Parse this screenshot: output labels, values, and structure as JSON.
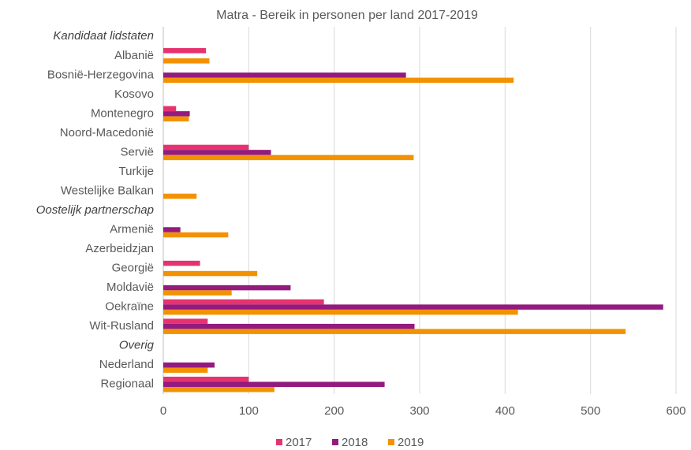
{
  "chart_data": {
    "type": "hbar",
    "title": "Matra - Bereik in personen per land 2017-2019",
    "categories": [
      {
        "label": "Kandidaat lidstaten",
        "group": true
      },
      {
        "label": "Albanië"
      },
      {
        "label": "Bosnië-Herzegovina"
      },
      {
        "label": "Kosovo"
      },
      {
        "label": "Montenegro"
      },
      {
        "label": "Noord-Macedonië"
      },
      {
        "label": "Servië"
      },
      {
        "label": "Turkije"
      },
      {
        "label": "Westelijke Balkan"
      },
      {
        "label": "Oostelijk partnerschap",
        "group": true
      },
      {
        "label": "Armenië"
      },
      {
        "label": "Azerbeidzjan"
      },
      {
        "label": "Georgië"
      },
      {
        "label": "Moldavië"
      },
      {
        "label": "Oekraïne"
      },
      {
        "label": "Wit-Rusland"
      },
      {
        "label": "Overig",
        "group": true
      },
      {
        "label": "Nederland"
      },
      {
        "label": "Regionaal"
      }
    ],
    "series": [
      {
        "name": "2017",
        "color": "#e6336f",
        "values": [
          null,
          50,
          null,
          null,
          15,
          null,
          100,
          null,
          null,
          null,
          null,
          null,
          43,
          null,
          188,
          52,
          null,
          null,
          100
        ]
      },
      {
        "name": "2018",
        "color": "#931a7e",
        "values": [
          null,
          null,
          284,
          null,
          31,
          null,
          126,
          null,
          null,
          null,
          20,
          null,
          null,
          149,
          585,
          294,
          null,
          60,
          259
        ]
      },
      {
        "name": "2019",
        "color": "#f39200",
        "values": [
          null,
          54,
          410,
          null,
          30,
          null,
          293,
          null,
          39,
          null,
          76,
          null,
          110,
          80,
          415,
          541,
          null,
          52,
          130
        ]
      }
    ],
    "xlim": [
      0,
      600
    ],
    "xticks": [
      0,
      100,
      200,
      300,
      400,
      500,
      600
    ],
    "grid": true,
    "legend": "bottom"
  }
}
